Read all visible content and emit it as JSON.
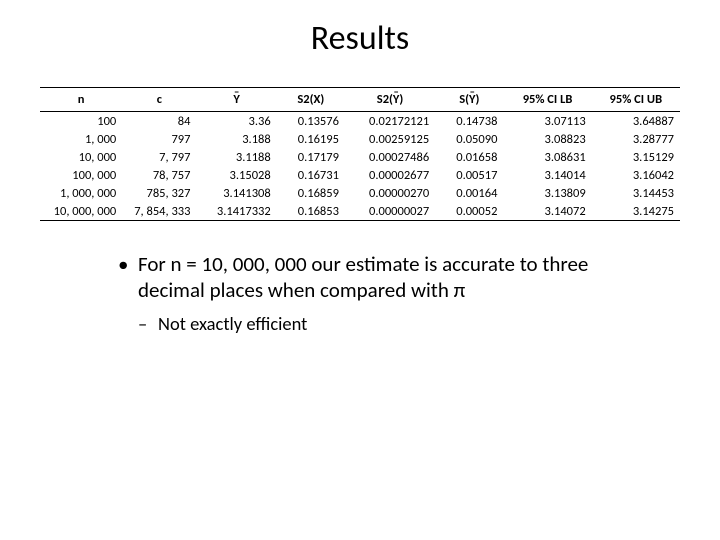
{
  "title": "Results",
  "table": {
    "columns": [
      "n",
      "c",
      "Ȳ",
      "S2(X)",
      "S2(Ȳ)",
      "S(Ȳ)",
      "95% CI LB",
      "95% CI UB"
    ],
    "col_classes": [
      "col-n",
      "col-c",
      "col-yb",
      "col-s2x",
      "col-s2y",
      "col-sy",
      "col-lb",
      "col-ub"
    ],
    "header_overline": [
      false,
      false,
      true,
      false,
      true,
      true,
      false,
      false
    ],
    "header_plain": [
      "n",
      "c",
      "Y",
      "S2(X)",
      "S2(Y)",
      "S(Y)",
      "95% CI LB",
      "95% CI UB"
    ],
    "header_prefix": [
      "",
      "",
      "",
      "",
      "S2(",
      "S(",
      "",
      ""
    ],
    "header_suffix": [
      "",
      "",
      "",
      "",
      ")",
      ")",
      "",
      ""
    ],
    "header_inner": [
      "n",
      "c",
      "Y",
      "S2(X)",
      "Y",
      "Y",
      "95% CI LB",
      "95% CI UB"
    ],
    "rows": [
      [
        "100",
        "84",
        "3.36",
        "0.13576",
        "0.02172121",
        "0.14738",
        "3.07113",
        "3.64887"
      ],
      [
        "1, 000",
        "797",
        "3.188",
        "0.16195",
        "0.00259125",
        "0.05090",
        "3.08823",
        "3.28777"
      ],
      [
        "10, 000",
        "7, 797",
        "3.1188",
        "0.17179",
        "0.00027486",
        "0.01658",
        "3.08631",
        "3.15129"
      ],
      [
        "100, 000",
        "78, 757",
        "3.15028",
        "0.16731",
        "0.00002677",
        "0.00517",
        "3.14014",
        "3.16042"
      ],
      [
        "1, 000, 000",
        "785, 327",
        "3.141308",
        "0.16859",
        "0.00000270",
        "0.00164",
        "3.13809",
        "3.14453"
      ],
      [
        "10, 000, 000",
        "7, 854, 333",
        "3.1417332",
        "0.16853",
        "0.00000027",
        "0.00052",
        "3.14072",
        "3.14275"
      ]
    ],
    "border_color": "#000000",
    "font_size": 12.5
  },
  "bullets": {
    "level1": "For n = 10, 000, 000 our estimate is accurate to three decimal places when compared with π",
    "level2": "Not exactly efficient"
  },
  "colors": {
    "background": "#ffffff",
    "text": "#000000"
  }
}
